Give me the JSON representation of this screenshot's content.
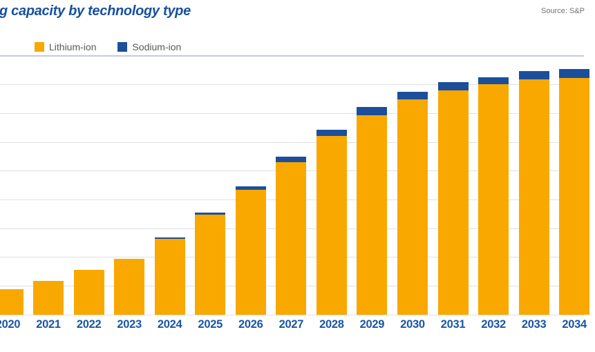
{
  "header": {
    "title": "g capacity by technology type",
    "source": "Source: S&P"
  },
  "legend": {
    "items": [
      {
        "label": "Lithium-ion",
        "color": "#F9A800"
      },
      {
        "label": "Sodium-ion",
        "color": "#1B4F9C"
      }
    ]
  },
  "colors": {
    "title_blue": "#1750A0",
    "label_blue": "#1A55A4",
    "legend_text": "#58595B",
    "source_gray": "#6E7277",
    "gridline": "#DDE0E4",
    "top_rule": "#C3CCD4",
    "lithium_orange": "#F9A800",
    "sodium_blue": "#1B4F9C"
  },
  "chart_data": {
    "type": "bar",
    "stacked": true,
    "title": "g capacity by technology type",
    "xlabel": "",
    "ylabel": "",
    "categories": [
      "2020",
      "2021",
      "2022",
      "2023",
      "2024",
      "2025",
      "2026",
      "2027",
      "2028",
      "2029",
      "2030",
      "2031",
      "2032",
      "2033",
      "2034"
    ],
    "series": [
      {
        "name": "Lithium-ion",
        "color": "#F9A800",
        "values": [
          9.0,
          11.8,
          15.6,
          19.5,
          26.5,
          34.9,
          43.4,
          53.0,
          62.2,
          69.4,
          74.9,
          78.0,
          80.2,
          81.8,
          82.3
        ]
      },
      {
        "name": "Sodium-ion",
        "color": "#1B4F9C",
        "values": [
          0,
          0,
          0,
          0,
          0.3,
          0.7,
          1.2,
          2.0,
          2.1,
          2.8,
          2.6,
          2.9,
          2.4,
          2.9,
          3.1
        ]
      }
    ],
    "ylim": [
      0,
      90
    ],
    "grid_step": 10,
    "grid": true,
    "y_tick_labels_visible": false,
    "legend_position": "top-left",
    "note": "first and last bars and y-axis cropped at image edges"
  }
}
